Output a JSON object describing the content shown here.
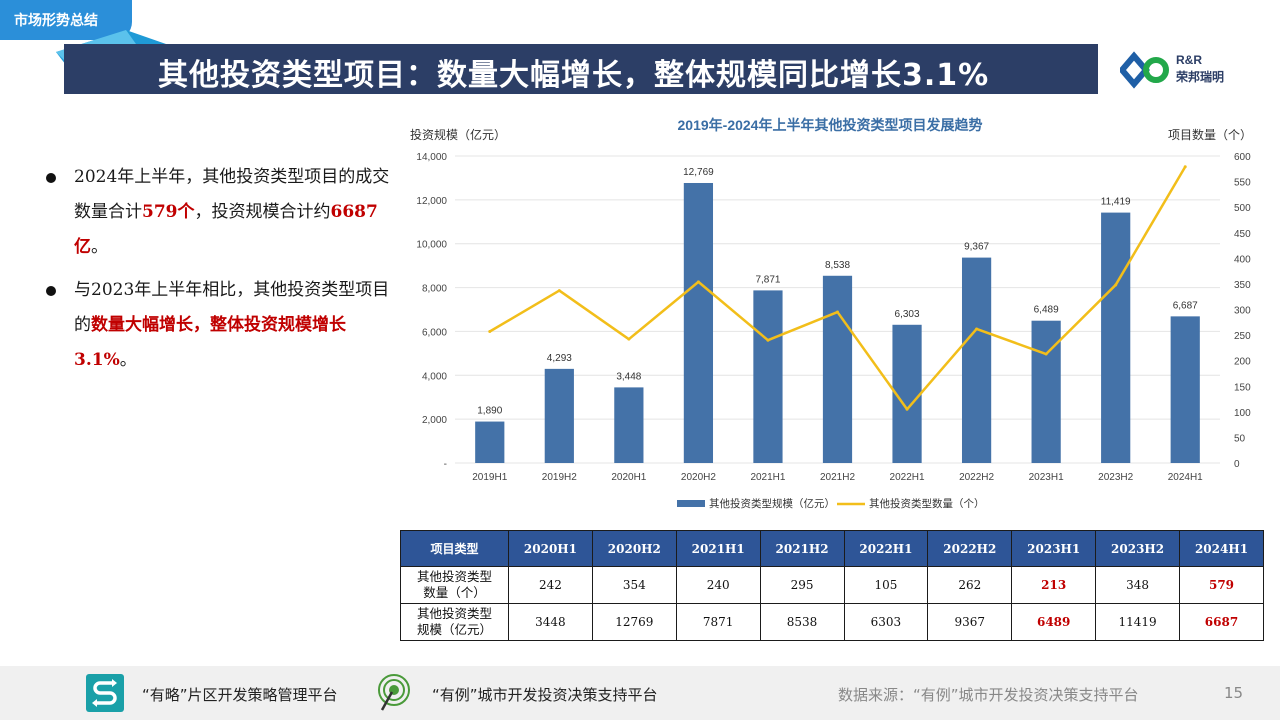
{
  "section_tag": "市场形势总结",
  "page_title": "其他投资类型项目：数量大幅增长，整体规模同比增长3.1%",
  "logo": {
    "rr": "R&R",
    "cn": "荣邦瑞明"
  },
  "bullets": [
    {
      "a": "2024年上半年，其他投资类型项目的成交数量合计",
      "b": "579个",
      "c": "，投资规模合计约",
      "d": "6687亿",
      "e": "。"
    },
    {
      "a": "与2023年上半年相比，其他投资类型项目的",
      "b": "数量大幅增长，整体投资规模增长3.1%",
      "c": "。"
    }
  ],
  "chart_data": {
    "type": "bar+line",
    "title": "2019年-2024年上半年其他投资类型项目发展趋势",
    "ylabel_left": "投资规模（亿元）",
    "ylabel_right": "项目数量（个）",
    "categories": [
      "2019H1",
      "2019H2",
      "2020H1",
      "2020H2",
      "2021H1",
      "2021H2",
      "2022H1",
      "2022H2",
      "2023H1",
      "2023H2",
      "2024H1"
    ],
    "series": [
      {
        "name": "其他投资类型规模（亿元）",
        "kind": "bar",
        "axis": "left",
        "color": "#4472a8",
        "values": [
          1890,
          4293,
          3448,
          12769,
          7871,
          8538,
          6303,
          9367,
          6489,
          11419,
          6687
        ],
        "labels": [
          "1,890",
          "4,293",
          "3,448",
          "12,769",
          "7,871",
          "8,538",
          "6,303",
          "9,367",
          "6,489",
          "11,419",
          "6,687"
        ]
      },
      {
        "name": "其他投资类型数量（个）",
        "kind": "line",
        "axis": "right",
        "color": "#f2be1a",
        "values": [
          257,
          337,
          242,
          354,
          240,
          295,
          105,
          262,
          213,
          348,
          579
        ]
      }
    ],
    "ylim_left": [
      0,
      14000
    ],
    "ylim_right": [
      0,
      600
    ],
    "yticks_left": [
      "-",
      "2,000",
      "4,000",
      "6,000",
      "8,000",
      "10,000",
      "12,000",
      "14,000"
    ],
    "yticks_right": [
      "0",
      "50",
      "100",
      "150",
      "200",
      "250",
      "300",
      "350",
      "400",
      "450",
      "500",
      "550",
      "600"
    ],
    "grid": true,
    "legend": "bottom"
  },
  "table": {
    "header": [
      "项目类型",
      "2020H1",
      "2020H2",
      "2021H1",
      "2021H2",
      "2022H1",
      "2022H2",
      "2023H1",
      "2023H2",
      "2024H1"
    ],
    "rows": [
      {
        "label": [
          "其他投资类型",
          "数量（个）"
        ],
        "values": [
          "242",
          "354",
          "240",
          "295",
          "105",
          "262",
          "213",
          "348",
          "579"
        ]
      },
      {
        "label": [
          "其他投资类型",
          "规模（亿元）"
        ],
        "values": [
          "3448",
          "12769",
          "7871",
          "8538",
          "6303",
          "9367",
          "6489",
          "11419",
          "6687"
        ]
      }
    ],
    "highlight_color": "#c00000"
  },
  "footer": {
    "platform1": "“有略”片区开发策略管理平台",
    "platform2": "“有例”城市开发投资决策支持平台",
    "source": "数据来源：“有例”城市开发投资决策支持平台",
    "page_number": "15"
  }
}
